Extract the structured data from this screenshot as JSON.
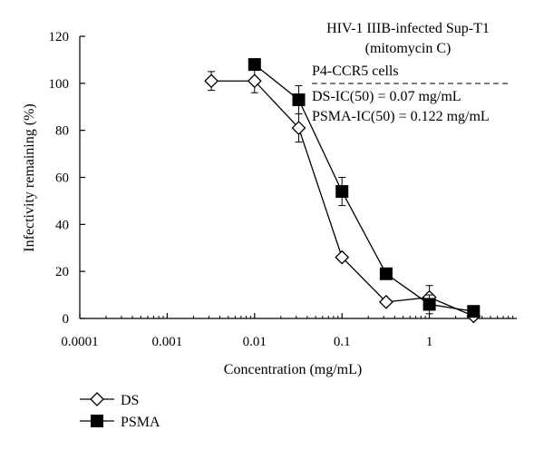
{
  "chart_data": {
    "type": "scatter",
    "xscale": "log",
    "xlabel": "Concentration (mg/mL)",
    "ylabel": "Infectivity remaining (%)",
    "xlim": [
      0.0001,
      10
    ],
    "ylim": [
      0,
      120
    ],
    "xticks": [
      0.0001,
      0.001,
      0.01,
      0.1,
      1
    ],
    "xtick_labels": [
      "0.0001",
      "0.001",
      "0.01",
      "0.1",
      "1"
    ],
    "yticks": [
      0,
      20,
      40,
      60,
      80,
      100,
      120
    ],
    "ytick_labels": [
      "0",
      "20",
      "40",
      "60",
      "80",
      "100",
      "120"
    ],
    "grid": false,
    "legend_position": "bottom-left",
    "annotations": {
      "line1": "HIV-1 IIIB-infected Sup-T1",
      "line2": "(mitomycin C)",
      "line3": "P4-CCR5 cells",
      "line4": "DS-IC(50) = 0.07 mg/mL",
      "line5": "PSMA-IC(50) = 0.122 mg/mL"
    },
    "series": [
      {
        "name": "DS",
        "marker": "open-diamond",
        "color": "#000000",
        "x": [
          0.0032,
          0.01,
          0.032,
          0.1,
          0.32,
          1,
          3.2
        ],
        "y": [
          101,
          101,
          81,
          26,
          7,
          9,
          1
        ],
        "err": [
          4,
          5,
          6,
          0,
          0,
          5,
          0
        ]
      },
      {
        "name": "PSMA",
        "marker": "filled-square",
        "color": "#000000",
        "x": [
          0.01,
          0.032,
          0.1,
          0.32,
          1,
          3.2
        ],
        "y": [
          108,
          93,
          54,
          19,
          6,
          3
        ],
        "err": [
          0,
          6,
          6,
          0,
          4,
          0
        ]
      }
    ]
  }
}
